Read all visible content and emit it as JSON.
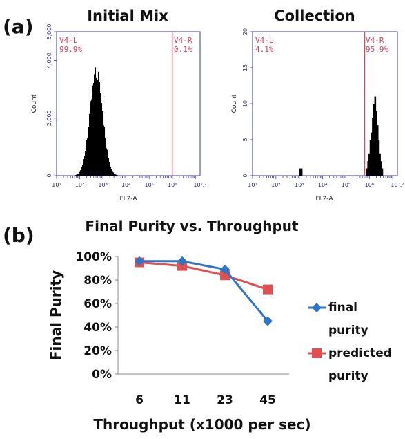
{
  "panel_a_label": "(a)",
  "panel_b_label": "(b)",
  "chart_data": [
    {
      "type": "histogram",
      "title": "Initial Mix",
      "xlabel": "FL2-A",
      "ylabel": "Count",
      "x_scale": "log",
      "xlim_log10": [
        1,
        7.2
      ],
      "x_tick_labels": [
        "10¹",
        "10²",
        "10³",
        "10⁴",
        "10⁵",
        "10⁶",
        "10⁷.²"
      ],
      "ylim": [
        0,
        5000
      ],
      "y_tick_labels": [
        "0",
        "2,000",
        "4,000",
        "5,000"
      ],
      "y_tick_values": [
        0,
        2000,
        4000,
        5000
      ],
      "gate_log10": 6,
      "gates": [
        {
          "name": "V4-L",
          "percent": "99.9%"
        },
        {
          "name": "V4-R",
          "percent": "0.1%"
        }
      ],
      "peak_log10": 2.7,
      "peak_count": 3600,
      "spread_log10": 0.28
    },
    {
      "type": "histogram",
      "title": "Collection",
      "xlabel": "FL2-A",
      "ylabel": "Count",
      "x_scale": "log",
      "xlim_log10": [
        1,
        7.2
      ],
      "x_tick_labels": [
        "10¹",
        "10²",
        "10³",
        "10⁴",
        "10⁵",
        "10⁶",
        "10⁷.²"
      ],
      "ylim": [
        0,
        20
      ],
      "y_tick_labels": [
        "0",
        "5",
        "10",
        "15",
        "20"
      ],
      "y_tick_values": [
        0,
        5,
        10,
        15,
        20
      ],
      "gate_log10": 5.8,
      "gates": [
        {
          "name": "V4-L",
          "percent": "4.1%"
        },
        {
          "name": "V4-R",
          "percent": "95.9%"
        }
      ],
      "bins": [
        {
          "x": 3.04,
          "count": 1
        },
        {
          "x": 3.1,
          "count": 1
        },
        {
          "x": 5.9,
          "count": 1
        },
        {
          "x": 5.95,
          "count": 2
        },
        {
          "x": 6.0,
          "count": 3
        },
        {
          "x": 6.05,
          "count": 5
        },
        {
          "x": 6.1,
          "count": 6
        },
        {
          "x": 6.15,
          "count": 8
        },
        {
          "x": 6.2,
          "count": 10
        },
        {
          "x": 6.25,
          "count": 11
        },
        {
          "x": 6.3,
          "count": 9
        },
        {
          "x": 6.35,
          "count": 7
        },
        {
          "x": 6.4,
          "count": 5
        },
        {
          "x": 6.45,
          "count": 3
        },
        {
          "x": 6.5,
          "count": 2
        },
        {
          "x": 6.55,
          "count": 1
        }
      ]
    },
    {
      "type": "line",
      "title": "Final Purity vs. Throughput",
      "xlabel": "Throughput (x1000 per sec)",
      "ylabel": "Final Purity",
      "categories": [
        "6",
        "11",
        "23",
        "45"
      ],
      "ylim": [
        0,
        100
      ],
      "y_tick_labels": [
        "0%",
        "20%",
        "40%",
        "60%",
        "80%",
        "100%"
      ],
      "series": [
        {
          "name": "final purity",
          "name_lines": [
            "final",
            "purity"
          ],
          "values": [
            96,
            96,
            89,
            45
          ],
          "color": "#2e75c7",
          "marker": "diamond"
        },
        {
          "name": "predicted purity",
          "name_lines": [
            "predicted",
            "purity"
          ],
          "values": [
            95,
            92,
            84,
            72
          ],
          "color": "#e05050",
          "marker": "square"
        }
      ],
      "legend_position": "right"
    }
  ]
}
